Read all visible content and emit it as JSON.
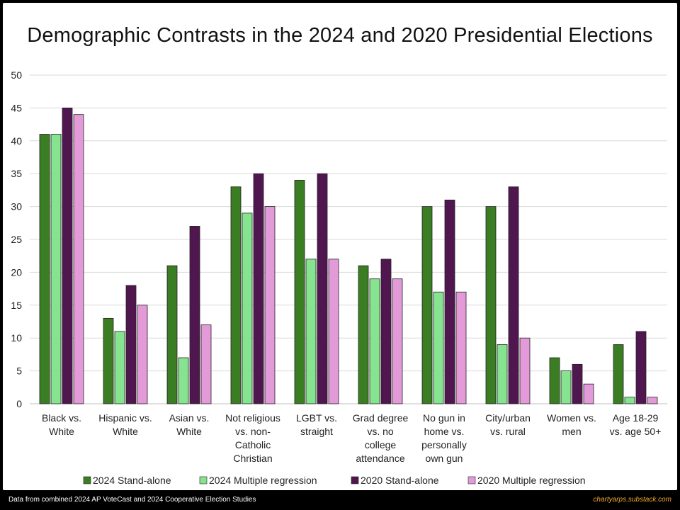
{
  "title": "Demographic Contrasts in the 2024 and 2020 Presidential Elections",
  "footer": {
    "source": "Data from combined 2024 AP VoteCast and 2024 Cooperative Election Studies",
    "credit": "chartyarps.substack.com"
  },
  "colors": {
    "s2024_standalone": "#3a7d22",
    "s2024_regression": "#86e38f",
    "s2020_standalone": "#4f1650",
    "s2020_regression": "#e39ad9",
    "grid": "#d9d9d9",
    "axis": "#bfbfbf"
  },
  "chart_data": {
    "type": "bar",
    "title": "Demographic Contrasts in the 2024 and 2020 Presidential Elections",
    "xlabel": "",
    "ylabel": "",
    "ylim": [
      0,
      50
    ],
    "yticks": [
      0,
      5,
      10,
      15,
      20,
      25,
      30,
      35,
      40,
      45,
      50
    ],
    "grid": true,
    "legend_position": "bottom",
    "categories": [
      [
        "Black vs.",
        "White"
      ],
      [
        "Hispanic vs.",
        "White"
      ],
      [
        "Asian vs.",
        "White"
      ],
      [
        "Not religious",
        "vs. non-",
        "Catholic",
        "Christian"
      ],
      [
        "LGBT vs.",
        "straight"
      ],
      [
        "Grad degree",
        "vs. no",
        "college",
        "attendance"
      ],
      [
        "No gun in",
        "home vs.",
        "personally",
        "own gun"
      ],
      [
        "City/urban",
        "vs. rural"
      ],
      [
        "Women vs.",
        "men"
      ],
      [
        "Age 18-29",
        "vs. age 50+"
      ]
    ],
    "series": [
      {
        "name": "2024 Stand-alone",
        "color_key": "s2024_standalone",
        "values": [
          41,
          13,
          21,
          33,
          34,
          21,
          30,
          30,
          7,
          9
        ]
      },
      {
        "name": "2024 Multiple regression",
        "color_key": "s2024_regression",
        "values": [
          41,
          11,
          7,
          29,
          22,
          19,
          17,
          9,
          5,
          1
        ]
      },
      {
        "name": "2020 Stand-alone",
        "color_key": "s2020_standalone",
        "values": [
          45,
          18,
          27,
          35,
          35,
          22,
          31,
          33,
          6,
          11
        ]
      },
      {
        "name": "2020 Multiple regression",
        "color_key": "s2020_regression",
        "values": [
          44,
          15,
          12,
          30,
          22,
          19,
          17,
          10,
          3,
          1
        ]
      }
    ]
  }
}
